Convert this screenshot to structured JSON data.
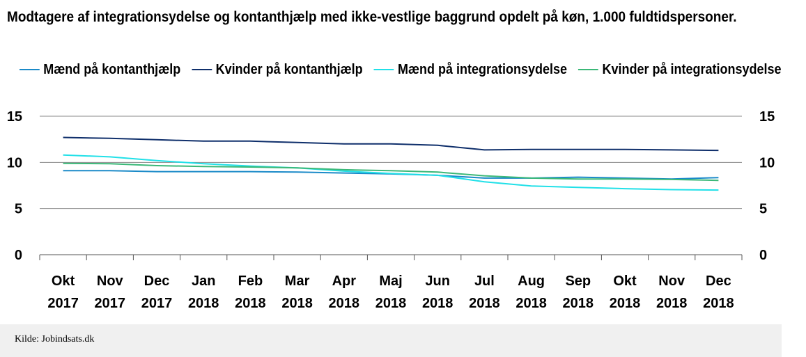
{
  "title": "Modtagere af integrationsydelse og kontanthjælp med ikke-vestlige baggrund opdelt på køn, 1.000 fuldtidspersoner.",
  "source": "Kilde: Jobindsats.dk",
  "chart_data": {
    "type": "line",
    "title": "Modtagere af integrationsydelse og kontanthjælp med ikke-vestlige baggrund opdelt på køn, 1.000 fuldtidspersoner.",
    "categories": [
      [
        "Okt",
        "2017"
      ],
      [
        "Nov",
        "2017"
      ],
      [
        "Dec",
        "2017"
      ],
      [
        "Jan",
        "2018"
      ],
      [
        "Feb",
        "2018"
      ],
      [
        "Mar",
        "2018"
      ],
      [
        "Apr",
        "2018"
      ],
      [
        "Maj",
        "2018"
      ],
      [
        "Jun",
        "2018"
      ],
      [
        "Jul",
        "2018"
      ],
      [
        "Aug",
        "2018"
      ],
      [
        "Sep",
        "2018"
      ],
      [
        "Okt",
        "2018"
      ],
      [
        "Nov",
        "2018"
      ],
      [
        "Dec",
        "2018"
      ]
    ],
    "ylim": [
      0,
      15
    ],
    "yticks": [
      0,
      5,
      10,
      15
    ],
    "y_axis_sides": [
      "left",
      "right"
    ],
    "grid": "horizontal",
    "legend_position": "top",
    "series": [
      {
        "name": "Mænd på kontanthjælp",
        "color": "#1b8ac8",
        "values": [
          9.1,
          9.1,
          9.0,
          9.0,
          9.0,
          8.95,
          8.85,
          8.75,
          8.6,
          8.3,
          8.3,
          8.4,
          8.3,
          8.2,
          8.35
        ]
      },
      {
        "name": "Kvinder på kontanthjælp",
        "color": "#0f2f6b",
        "values": [
          12.7,
          12.6,
          12.45,
          12.3,
          12.3,
          12.15,
          12.0,
          12.0,
          11.85,
          11.35,
          11.4,
          11.4,
          11.4,
          11.35,
          11.3
        ]
      },
      {
        "name": "Mænd på integrationsydelse",
        "color": "#21e0e8",
        "values": [
          10.8,
          10.6,
          10.2,
          9.85,
          9.6,
          9.4,
          9.05,
          8.8,
          8.6,
          7.9,
          7.45,
          7.3,
          7.15,
          7.05,
          7.0
        ]
      },
      {
        "name": "Kvinder på integrationsydelse",
        "color": "#3bb878",
        "values": [
          9.9,
          9.85,
          9.65,
          9.55,
          9.5,
          9.4,
          9.2,
          9.1,
          8.95,
          8.55,
          8.3,
          8.2,
          8.2,
          8.15,
          8.05
        ]
      }
    ]
  }
}
